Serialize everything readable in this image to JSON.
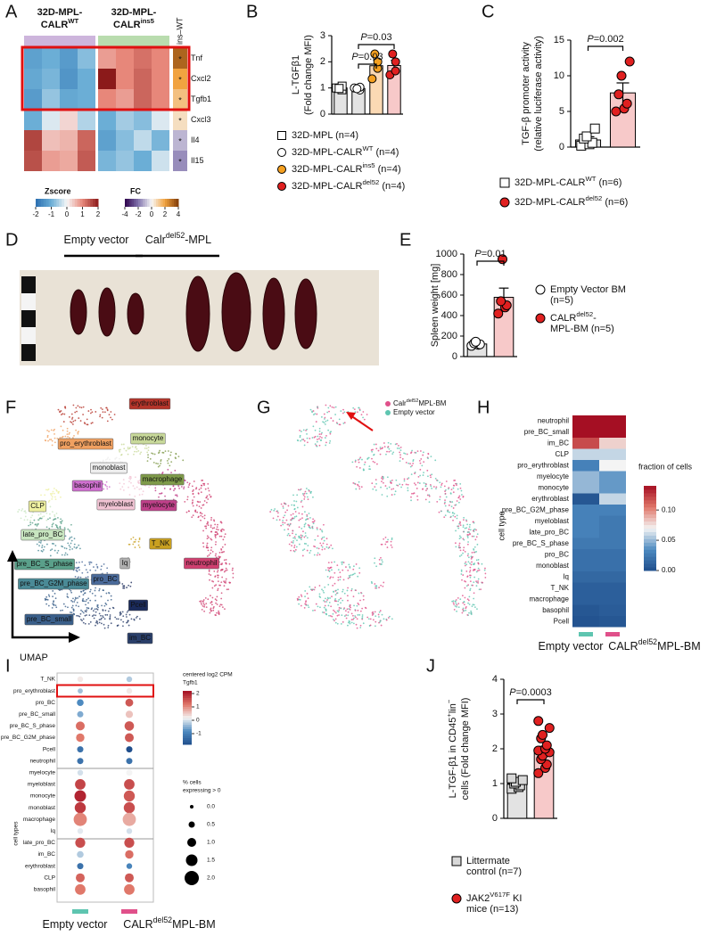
{
  "figure": {
    "A": {
      "label": "A",
      "groups": [
        {
          "line1": {
            "text": "32D-MPL-"
          },
          "line2": {
            "text": "CALR",
            "sup": "WT"
          },
          "color": "#cdb5dc"
        },
        {
          "line1": {
            "text": "32D-MPL-"
          },
          "line2": {
            "text": "CALR",
            "sup": "ins5"
          },
          "color": "#b9dcae"
        }
      ],
      "fc_header": "ins–WT",
      "genes": [
        "Tnf",
        "Cxcl2",
        "Tgfb1",
        "Cxcl3",
        "Il4",
        "Il15"
      ],
      "zscore": [
        [
          -1.2,
          -1.0,
          -1.3,
          -0.8,
          0.8,
          1.0,
          1.2,
          1.0
        ],
        [
          -1.1,
          -0.9,
          -1.4,
          -1.0,
          2.0,
          1.0,
          1.3,
          1.0
        ],
        [
          -1.3,
          -0.7,
          -1.1,
          -1.0,
          1.0,
          0.8,
          1.3,
          1.0
        ],
        [
          -1.0,
          -0.2,
          0.3,
          -0.5,
          -1.0,
          -0.6,
          -0.8,
          -0.2
        ],
        [
          1.6,
          0.5,
          0.6,
          1.3,
          -1.2,
          -0.8,
          -0.4,
          -0.9
        ],
        [
          1.5,
          0.8,
          0.7,
          1.4,
          -0.9,
          -0.7,
          -1.0,
          -0.3
        ]
      ],
      "fc": [
        3.2,
        2.0,
        1.3,
        0.6,
        -1.0,
        -1.6
      ],
      "sig": [
        "*",
        "*",
        "*",
        "*",
        "*",
        "*"
      ],
      "zscore_title": "Zscore",
      "zscore_ticks": [
        -2,
        -1,
        0,
        1,
        2
      ],
      "fc_title": "FC",
      "fc_ticks": [
        -4,
        -2,
        0,
        2,
        4
      ]
    },
    "B": {
      "label": "B",
      "ylabel": [
        {
          "text": "L-TGFβ1"
        },
        {
          "text": "(Fold change MFI)"
        }
      ],
      "ylim": [
        0,
        3
      ],
      "yticks": [
        0,
        1,
        2,
        3
      ],
      "groups": [
        {
          "name": [
            {
              "text": "32D-MPL (n=4)"
            }
          ],
          "mean": 1.0,
          "sem": 0.07,
          "points": [
            1.0,
            0.93,
            1.07,
            0.98
          ],
          "bar_color": "#e3e3e3",
          "point_color": "#ffffff",
          "marker": "square"
        },
        {
          "name": [
            {
              "text": "32D-MPL-CALR",
              "sup": "WT",
              "after": " (n=4)"
            }
          ],
          "mean": 0.98,
          "sem": 0.05,
          "points": [
            1.0,
            0.92,
            1.03,
            0.97
          ],
          "bar_color": "#e3e3e3",
          "point_color": "#ffffff",
          "marker": "circle"
        },
        {
          "name": [
            {
              "text": "32D-MPL-CALR",
              "sup": "ins5",
              "after": " (n=4)"
            }
          ],
          "mean": 1.85,
          "sem": 0.22,
          "points": [
            1.35,
            1.75,
            2.0,
            2.3
          ],
          "bar_color": "#fbd9b4",
          "point_color": "#f5a020",
          "marker": "circle"
        },
        {
          "name": [
            {
              "text": "32D-MPL-CALR",
              "sup": "del52",
              "after": " (n=4)"
            }
          ],
          "mean": 1.86,
          "sem": 0.2,
          "points": [
            1.5,
            1.65,
            2.0,
            2.3
          ],
          "bar_color": "#f7c9c9",
          "point_color": "#e02020",
          "marker": "circle"
        }
      ],
      "pvalues": [
        {
          "p": "P",
          "text": "=0.03"
        },
        {
          "p": "P",
          "text": "=0.03"
        }
      ]
    },
    "C": {
      "label": "C",
      "ylabel": [
        {
          "text": "TGF-β promoter activity"
        },
        {
          "text": "(relative luciferase activity)"
        }
      ],
      "ylim": [
        0,
        15
      ],
      "yticks": [
        0,
        5,
        10,
        15
      ],
      "groups": [
        {
          "name": [
            {
              "text": "32D-MPL-CALR",
              "sup": "WT",
              "after": " (n=6)"
            }
          ],
          "mean": 1.0,
          "sem": 0.45,
          "points": [
            0.2,
            0.4,
            0.6,
            1.2,
            1.5,
            2.6
          ],
          "bar_color": "#e3e3e3",
          "point_color": "#ffffff",
          "marker": "square"
        },
        {
          "name": [
            {
              "text": "32D-MPL-CALR",
              "sup": "del52",
              "after": " (n=6)"
            }
          ],
          "mean": 7.6,
          "sem": 1.4,
          "points": [
            5.0,
            5.4,
            6.1,
            7.4,
            10.0,
            12.0
          ],
          "bar_color": "#f7c9c9",
          "point_color": "#e02020",
          "marker": "circle"
        }
      ],
      "pvalues": [
        {
          "p": "P",
          "text": "=0.002"
        }
      ]
    },
    "D": {
      "label": "D",
      "empty": {
        "text": "Empty vector"
      },
      "calr": {
        "text": "Calr",
        "sup": "del52",
        "after": "-MPL"
      }
    },
    "E": {
      "label": "E",
      "ylabel": [
        {
          "text": "Spleen weight [mg]"
        }
      ],
      "ylim": [
        0,
        1000
      ],
      "yticks": [
        0,
        200,
        400,
        600,
        800,
        1000
      ],
      "groups": [
        {
          "name": [
            {
              "text": "Empty Vector BM"
            },
            {
              "text": "(n=5)"
            }
          ],
          "mean": 123,
          "sem": 8,
          "points": [
            105,
            115,
            120,
            130,
            145
          ],
          "bar_color": "#e3e3e3",
          "point_color": "#ffffff",
          "marker": "circle"
        },
        {
          "name": [
            {
              "text": "CALR",
              "sup": "del52",
              "after": "-"
            },
            {
              "text": "MPL-BM (n=5)"
            }
          ],
          "mean": 578,
          "sem": 90,
          "points": [
            420,
            480,
            500,
            540,
            950
          ],
          "bar_color": "#f7c9c9",
          "point_color": "#e02020",
          "marker": "circle"
        }
      ],
      "pvalues": [
        {
          "p": "P",
          "text": "=0.01"
        }
      ]
    },
    "F": {
      "label": "F",
      "axis_label": "UMAP",
      "clusters": [
        {
          "name": "erythroblast",
          "color": "#b5342a"
        },
        {
          "name": "pro_erythroblast",
          "color": "#f0a060"
        },
        {
          "name": "monocyte",
          "color": "#c8d99a"
        },
        {
          "name": "monoblast",
          "color": "#eeeeee"
        },
        {
          "name": "macrophage",
          "color": "#7f9a4a"
        },
        {
          "name": "basophil",
          "color": "#d070d0"
        },
        {
          "name": "myeloblast",
          "color": "#f2c4d4"
        },
        {
          "name": "myelocyte",
          "color": "#c0408a"
        },
        {
          "name": "CLP",
          "color": "#eef0a0"
        },
        {
          "name": "late_pro_BC",
          "color": "#c8e6c0"
        },
        {
          "name": "T_NK",
          "color": "#c9a020"
        },
        {
          "name": "pre_BC_S_phase",
          "color": "#5aa08a"
        },
        {
          "name": "Iq",
          "color": "#b0b0b0"
        },
        {
          "name": "neutrophil",
          "color": "#d04070"
        },
        {
          "name": "pre_BC_G2M_phase",
          "color": "#4a8a96"
        },
        {
          "name": "pro_BC",
          "color": "#4a6a9a"
        },
        {
          "name": "Pcell",
          "color": "#1a2a5a"
        },
        {
          "name": "pre_BC_small",
          "color": "#3a5f8a"
        },
        {
          "name": "im_BC",
          "color": "#2a3f6a"
        }
      ]
    },
    "G": {
      "label": "G",
      "legend": [
        {
          "text": "Calr",
          "sup": "del52",
          "after": "MPL-BM",
          "color": "#e0508a"
        },
        {
          "text": "Empty vector",
          "color": "#5ec5b0"
        }
      ]
    },
    "H": {
      "label": "H",
      "cell_types": [
        "neutrophil",
        "pre_BC_small",
        "im_BC",
        "CLP",
        "pro_erythroblast",
        "myelocyte",
        "monocyte",
        "erythroblast",
        "pre_BC_G2M_phase",
        "myeloblast",
        "late_pro_BC",
        "pre_BC_S_phase",
        "pro_BC",
        "monoblast",
        "Iq",
        "T_NK",
        "macrophage",
        "basophil",
        "Pcell"
      ],
      "values": [
        [
          0.14,
          0.14
        ],
        [
          0.14,
          0.14
        ],
        [
          0.12,
          0.08
        ],
        [
          0.06,
          0.06
        ],
        [
          0.03,
          0.07
        ],
        [
          0.05,
          0.04
        ],
        [
          0.05,
          0.04
        ],
        [
          0.005,
          0.06
        ],
        [
          0.03,
          0.03
        ],
        [
          0.03,
          0.025
        ],
        [
          0.03,
          0.025
        ],
        [
          0.025,
          0.025
        ],
        [
          0.02,
          0.02
        ],
        [
          0.02,
          0.02
        ],
        [
          0.015,
          0.015
        ],
        [
          0.01,
          0.01
        ],
        [
          0.01,
          0.01
        ],
        [
          0.005,
          0.008
        ],
        [
          0.003,
          0.005
        ]
      ],
      "clim": [
        0,
        0.14
      ],
      "colorbar_title": "fraction of cells",
      "colorbar_ticks": [
        {
          "value": 0,
          "label": "0.00"
        },
        {
          "value": 0.05,
          "label": "0.05"
        },
        {
          "value": 0.1,
          "label": "0.10"
        }
      ],
      "ylabel": "cell type",
      "columns": [
        {
          "name": {
            "text": "Empty vector"
          },
          "color": "#5ec5b0"
        },
        {
          "name": {
            "text": "CALR",
            "sup": "del52",
            "after": "MPL-BM"
          },
          "color": "#e0508a"
        }
      ]
    },
    "I": {
      "label": "I",
      "cell_types": [
        "T_NK",
        "pro_erythroblast",
        "pro_BC",
        "pre_BC_small",
        "pre_BC_S_phase",
        "pre_BC_G2M_phase",
        "Pcell",
        "neutrophil",
        "myelocyte",
        "myeloblast",
        "monocyte",
        "monoblast",
        "macrophage",
        "Iq",
        "late_pro_BC",
        "im_BC",
        "erythroblast",
        "CLP",
        "basophil"
      ],
      "color_values": [
        [
          0.3,
          -0.2
        ],
        [
          -0.3,
          0.3
        ],
        [
          -0.8,
          1.5
        ],
        [
          -0.5,
          0.6
        ],
        [
          1.3,
          1.5
        ],
        [
          1.2,
          1.5
        ],
        [
          -1.2,
          -1.8
        ],
        [
          -1.2,
          -1.2
        ],
        [
          0.0,
          0.2
        ],
        [
          1.7,
          1.6
        ],
        [
          2.0,
          1.5
        ],
        [
          1.8,
          1.6
        ],
        [
          1.1,
          0.8
        ],
        [
          0.1,
          0.0
        ],
        [
          1.6,
          1.6
        ],
        [
          -0.2,
          1.3
        ],
        [
          -1.2,
          -0.9
        ],
        [
          1.4,
          1.5
        ],
        [
          1.2,
          1.2
        ]
      ],
      "size_values": [
        [
          0.4,
          0.4
        ],
        [
          0.3,
          0.4
        ],
        [
          0.6,
          0.8
        ],
        [
          0.5,
          0.7
        ],
        [
          1.0,
          1.1
        ],
        [
          0.9,
          1.0
        ],
        [
          0.5,
          0.5
        ],
        [
          0.5,
          0.5
        ],
        [
          0.4,
          0.5
        ],
        [
          1.3,
          1.3
        ],
        [
          1.5,
          1.4
        ],
        [
          1.4,
          1.4
        ],
        [
          1.8,
          1.8
        ],
        [
          0.4,
          0.4
        ],
        [
          1.2,
          1.2
        ],
        [
          0.6,
          0.9
        ],
        [
          0.5,
          0.4
        ],
        [
          1.0,
          1.0
        ],
        [
          1.3,
          1.3
        ]
      ],
      "clim": [
        -1.8,
        2.2
      ],
      "color_title": [
        "centered log2 CPM",
        "Tgfb1"
      ],
      "color_ticks": [
        2,
        1,
        0,
        -1
      ],
      "size_title": [
        "% cells",
        "expressing > 0"
      ],
      "size_ticks": [
        {
          "value": 0,
          "label": "0.0"
        },
        {
          "value": 0.5,
          "label": "0.5"
        },
        {
          "value": 1,
          "label": "1.0"
        },
        {
          "value": 1.5,
          "label": "1.5"
        },
        {
          "value": 2,
          "label": "2.0"
        }
      ],
      "ylabel": "cell types",
      "columns": [
        {
          "name": {
            "text": "Empty vector"
          },
          "color": "#5ec5b0"
        },
        {
          "name": {
            "text": "CALR",
            "sup": "del52",
            "after": "MPL-BM"
          },
          "color": "#e0508a"
        }
      ]
    },
    "J": {
      "label": "J",
      "ylabel": [
        {
          "text": "L-TGF-β1 in CD45",
          "sup": "+",
          "after": "lin",
          "sup2": "−"
        },
        {
          "text": "cells (Fold change MFI)"
        }
      ],
      "ylim": [
        0,
        4
      ],
      "yticks": [
        0,
        1,
        2,
        3,
        4
      ],
      "groups": [
        {
          "name": [
            {
              "text": "Littermate"
            },
            {
              "text": "control (n=7)"
            }
          ],
          "mean": 1.0,
          "sem": 0.05,
          "points": [
            0.85,
            0.9,
            0.95,
            1.0,
            1.05,
            1.1,
            1.15
          ],
          "bar_color": "#e3e3e3",
          "point_color": "#d8d8d8",
          "marker": "square"
        },
        {
          "name": [
            {
              "text": "JAK2",
              "sup": "V617F",
              "after": " KI"
            },
            {
              "text": "mice (n=13)"
            }
          ],
          "mean": 1.95,
          "sem": 0.12,
          "points": [
            1.3,
            1.45,
            1.55,
            1.7,
            1.8,
            1.9,
            1.95,
            2.0,
            2.1,
            2.3,
            2.4,
            2.6,
            2.8
          ],
          "bar_color": "#f7c9c9",
          "point_color": "#e02020",
          "marker": "circle"
        }
      ],
      "pvalues": [
        {
          "p": "P",
          "text": "=0.0003"
        }
      ]
    }
  }
}
